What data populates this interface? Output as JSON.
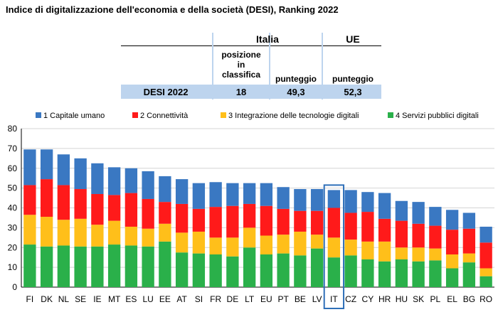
{
  "title": "Indice di digitalizzazione dell'economia e della società (DESI), Ranking 2022",
  "summary_table": {
    "group_italia": "Italia",
    "group_ue": "UE",
    "col_rank": [
      "posizione",
      "in",
      "classifica"
    ],
    "col_score_it": "punteggio",
    "col_score_ue": "punteggio",
    "row_label": "DESI 2022",
    "rank": "18",
    "score_it": "49,3",
    "score_ue": "52,3"
  },
  "chart_data": {
    "type": "bar",
    "stacked": true,
    "categories": [
      "FI",
      "DK",
      "NL",
      "SE",
      "IE",
      "MT",
      "ES",
      "LU",
      "EE",
      "AT",
      "SI",
      "FR",
      "DE",
      "LT",
      "EU",
      "PT",
      "BE",
      "LV",
      "IT",
      "CZ",
      "CY",
      "HR",
      "HU",
      "SK",
      "PL",
      "EL",
      "BG",
      "RO"
    ],
    "highlight_category": "IT",
    "ylim": [
      0,
      80
    ],
    "yticks": [
      0,
      10,
      20,
      30,
      40,
      50,
      60,
      70,
      80
    ],
    "grid": true,
    "legend_position": "top",
    "series": [
      {
        "name": "4 Servizi pubblici digitali",
        "color": "#2ab04a",
        "values": [
          21.5,
          20.5,
          21,
          20.5,
          20.5,
          21.5,
          21,
          20.5,
          23,
          17.5,
          17,
          16.5,
          15.5,
          20,
          16.5,
          17,
          16,
          19.5,
          15,
          16,
          14,
          13,
          14,
          13,
          13.5,
          9.5,
          12.5,
          5.5
        ]
      },
      {
        "name": "3 Integrazione delle tecnologie digitali",
        "color": "#ffbf1a",
        "values": [
          15,
          15,
          13,
          14,
          11,
          12,
          9.5,
          9,
          9,
          10,
          11,
          8.5,
          9.5,
          10,
          9.5,
          9.5,
          12,
          7,
          10,
          8,
          9,
          10,
          6,
          7,
          6,
          7,
          4.5,
          4
        ]
      },
      {
        "name": "2 Connettività",
        "color": "#ff1a1a",
        "values": [
          15,
          19,
          17.5,
          15,
          15.5,
          13,
          17,
          15,
          11,
          14.5,
          11.5,
          15.5,
          16,
          12,
          15,
          13,
          10.5,
          12,
          15,
          13.5,
          15,
          11.5,
          13.5,
          12,
          11.5,
          12.5,
          12.5,
          13
        ]
      },
      {
        "name": "1 Capitale umano",
        "color": "#3a78c2",
        "values": [
          18,
          15,
          15.5,
          15.5,
          15.5,
          14,
          12.5,
          14,
          13,
          12.5,
          13,
          12.5,
          11.5,
          10.5,
          11.5,
          11,
          11,
          11,
          9,
          11.5,
          10,
          13,
          10,
          11,
          9.5,
          10,
          8,
          8
        ]
      }
    ]
  }
}
